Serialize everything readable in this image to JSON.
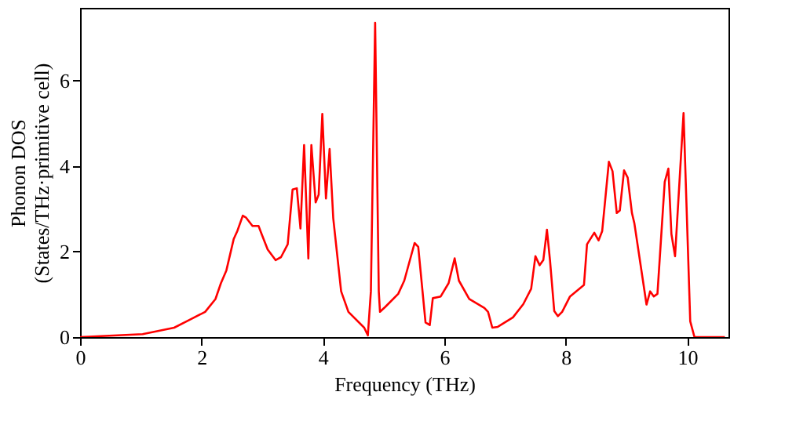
{
  "chart_data": {
    "type": "line",
    "xlabel": "Frequency (THz)",
    "ylabel": "Phonon DOS\n(States/THz·primitive cell)",
    "xlim": [
      0,
      10.68
    ],
    "ylim": [
      0,
      7.7
    ],
    "xticks": [
      0,
      2,
      4,
      6,
      8,
      10
    ],
    "yticks": [
      0,
      2,
      4,
      6
    ],
    "grid": false,
    "line_style": "solid",
    "marker": "none",
    "series": [
      {
        "color": "#ff0000",
        "x": [
          0,
          1.03,
          1.55,
          1.8,
          2.06,
          2.23,
          2.32,
          2.41,
          2.53,
          2.59,
          2.68,
          2.73,
          2.84,
          2.94,
          2.99,
          3.09,
          3.22,
          3.31,
          3.42,
          3.5,
          3.57,
          3.63,
          3.69,
          3.76,
          3.81,
          3.88,
          3.93,
          3.99,
          4.05,
          4.11,
          4.17,
          4.3,
          4.42,
          4.68,
          4.74,
          4.79,
          4.86,
          4.92,
          4.94,
          5.03,
          5.24,
          5.34,
          5.51,
          5.57,
          5.69,
          5.76,
          5.81,
          5.94,
          6.07,
          6.17,
          6.24,
          6.41,
          6.66,
          6.72,
          6.79,
          6.88,
          7.13,
          7.3,
          7.43,
          7.5,
          7.57,
          7.63,
          7.69,
          7.74,
          7.81,
          7.87,
          7.94,
          8.07,
          8.3,
          8.35,
          8.47,
          8.54,
          8.6,
          8.71,
          8.77,
          8.84,
          8.89,
          8.96,
          9.02,
          9.09,
          9.13,
          9.33,
          9.39,
          9.45,
          9.51,
          9.63,
          9.69,
          9.74,
          9.8,
          9.94,
          10.05,
          10.12,
          10.62
        ],
        "values": [
          0,
          0.07,
          0.22,
          0.4,
          0.59,
          0.89,
          1.26,
          1.56,
          2.29,
          2.48,
          2.84,
          2.8,
          2.6,
          2.6,
          2.41,
          2.05,
          1.8,
          1.87,
          2.17,
          3.45,
          3.48,
          2.54,
          4.49,
          1.84,
          4.49,
          3.15,
          3.33,
          5.22,
          3.24,
          4.4,
          2.78,
          1.07,
          0.59,
          0.22,
          0.04,
          1.07,
          7.35,
          1.07,
          0.59,
          0.71,
          1.01,
          1.32,
          2.2,
          2.11,
          0.34,
          0.28,
          0.91,
          0.95,
          1.26,
          1.84,
          1.32,
          0.89,
          0.68,
          0.59,
          0.22,
          0.24,
          0.46,
          0.77,
          1.13,
          1.89,
          1.68,
          1.8,
          2.51,
          1.8,
          0.61,
          0.49,
          0.59,
          0.95,
          1.22,
          2.17,
          2.44,
          2.26,
          2.48,
          4.1,
          3.88,
          2.9,
          2.96,
          3.9,
          3.73,
          2.9,
          2.66,
          0.76,
          1.07,
          0.95,
          1.01,
          3.63,
          3.94,
          2.41,
          1.89,
          5.24,
          0.37,
          0,
          0
        ]
      }
    ]
  }
}
